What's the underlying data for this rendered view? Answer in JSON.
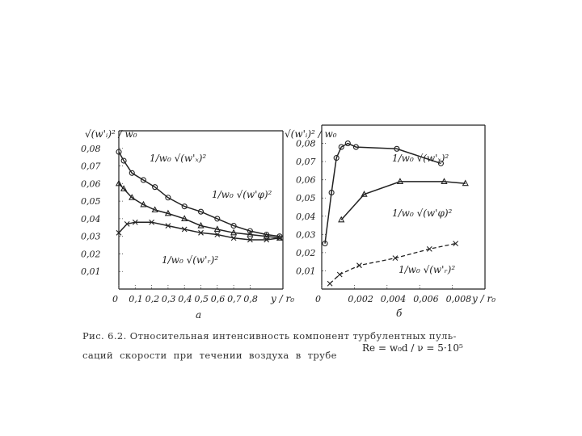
{
  "chart_data": [
    {
      "type": "scatter",
      "panel_label": "a",
      "ylabel": "√(w'ᵢ)² / w₀",
      "xlabel": "y / r₀",
      "xlim": [
        0,
        1.0
      ],
      "ylim": [
        0,
        0.09
      ],
      "x_ticks": [
        "0",
        "0,1",
        "0,2",
        "0,3",
        "0,4",
        "0,5",
        "0,6",
        "0,7",
        "0,8"
      ],
      "y_ticks": [
        "0,08",
        "0,07",
        "0,06",
        "0,05",
        "0,04",
        "0,03",
        "0,02",
        "0,01"
      ],
      "series": [
        {
          "name": "1/w₀ √(w'ₓ)²",
          "marker": "circle",
          "x": [
            0.0,
            0.03,
            0.08,
            0.15,
            0.22,
            0.3,
            0.4,
            0.5,
            0.6,
            0.7,
            0.8,
            0.9,
            0.98
          ],
          "y": [
            0.078,
            0.073,
            0.066,
            0.062,
            0.058,
            0.052,
            0.047,
            0.044,
            0.04,
            0.036,
            0.033,
            0.031,
            0.03
          ]
        },
        {
          "name": "1/w₀ √(w'φ)²",
          "marker": "triangle",
          "x": [
            0.0,
            0.03,
            0.08,
            0.15,
            0.22,
            0.3,
            0.4,
            0.5,
            0.6,
            0.7,
            0.8,
            0.9,
            0.98
          ],
          "y": [
            0.06,
            0.057,
            0.052,
            0.048,
            0.045,
            0.043,
            0.04,
            0.036,
            0.034,
            0.032,
            0.031,
            0.03,
            0.029
          ]
        },
        {
          "name": "1/w₀ √(w'ᵣ)²",
          "marker": "cross",
          "x": [
            0.0,
            0.05,
            0.1,
            0.2,
            0.3,
            0.4,
            0.5,
            0.6,
            0.7,
            0.8,
            0.9,
            0.98
          ],
          "y": [
            0.032,
            0.037,
            0.038,
            0.038,
            0.036,
            0.034,
            0.032,
            0.031,
            0.029,
            0.028,
            0.028,
            0.029
          ]
        }
      ]
    },
    {
      "type": "scatter",
      "panel_label": "б",
      "ylabel": "√(w'ᵢ)² / w₀",
      "xlabel": "y / r₀",
      "xlim": [
        0,
        0.01
      ],
      "ylim": [
        0,
        0.09
      ],
      "x_ticks": [
        "0",
        "0,002",
        "0,004",
        "0,006",
        "0,008"
      ],
      "y_ticks": [
        "0,08",
        "0,07",
        "0,06",
        "0,05",
        "0,04",
        "0,03",
        "0,02",
        "0,01"
      ],
      "series": [
        {
          "name": "1/w₀ √(w'ₓ)²",
          "marker": "circle",
          "x": [
            0.0002,
            0.0006,
            0.0009,
            0.0012,
            0.0016,
            0.0021,
            0.0046,
            0.0073
          ],
          "y": [
            0.025,
            0.053,
            0.072,
            0.078,
            0.08,
            0.078,
            0.077,
            0.069
          ]
        },
        {
          "name": "1/w₀ √(w'φ)²",
          "marker": "triangle",
          "x": [
            0.0012,
            0.0026,
            0.0048,
            0.0075,
            0.0088
          ],
          "y": [
            0.038,
            0.052,
            0.059,
            0.059,
            0.058
          ]
        },
        {
          "name": "1/w₀ √(w'ᵣ)²",
          "marker": "cross",
          "x": [
            0.0005,
            0.0011,
            0.0023,
            0.0045,
            0.0066,
            0.0082
          ],
          "y": [
            0.003,
            0.008,
            0.013,
            0.017,
            0.022,
            0.025
          ]
        }
      ]
    }
  ],
  "caption": {
    "line1": "Рис. 6.2. Относительная интенсивность компонент турбулентных пуль-",
    "line2": "саций скорости при течении воздуха в трубе",
    "formula": "Re = w₀d / ν = 5·10⁵"
  }
}
